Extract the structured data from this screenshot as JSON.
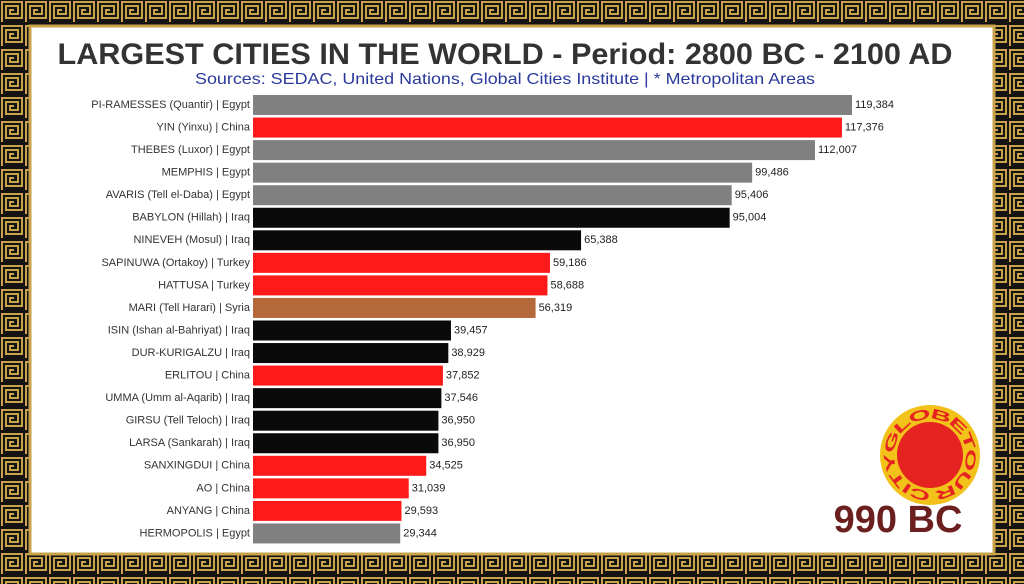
{
  "chart_data": {
    "type": "bar",
    "orientation": "horizontal",
    "title": "LARGEST CITIES IN THE WORLD - Period: 2800 BC - 2100 AD",
    "subtitle": "Sources: SEDAC, United Nations, Global Cities Institute | * Metropolitan Areas",
    "period_label": "990 BC",
    "logo_text": "CITYGLOBETOUR",
    "categories": [
      "PI-RAMESSES (Quantir) | Egypt",
      "YIN (Yinxu) | China",
      "THEBES (Luxor) | Egypt",
      "MEMPHIS | Egypt",
      "AVARIS (Tell el-Daba) | Egypt",
      "BABYLON (Hillah) | Iraq",
      "NINEVEH (Mosul) | Iraq",
      "SAPINUWA (Ortakoy) | Turkey",
      "HATTUSA | Turkey",
      "MARI (Tell Harari) | Syria",
      "ISIN (Ishan al-Bahriyat) | Iraq",
      "DUR-KURIGALZU | Iraq",
      "ERLITOU | China",
      "UMMA (Umm al-Aqarib) | Iraq",
      "GIRSU (Tell Teloch) | Iraq",
      "LARSA (Sankarah) | Iraq",
      "SANXINGDUI | China",
      "AO | China",
      "ANYANG | China",
      "HERMOPOLIS | Egypt"
    ],
    "values": [
      119384,
      117376,
      112007,
      99486,
      95406,
      95004,
      65388,
      59186,
      58688,
      56319,
      39457,
      38929,
      37852,
      37546,
      36950,
      36950,
      34525,
      31039,
      29593,
      29344
    ],
    "value_labels": [
      "119,384",
      "117,376",
      "112,007",
      "99,486",
      "95,406",
      "95,004",
      "65,388",
      "59,186",
      "58,688",
      "56,319",
      "39,457",
      "38,929",
      "37,852",
      "37,546",
      "36,950",
      "36,950",
      "34,525",
      "31,039",
      "29,593",
      "29,344"
    ],
    "colors": [
      "#808080",
      "#ff1a1a",
      "#808080",
      "#808080",
      "#808080",
      "#0a0a0a",
      "#0a0a0a",
      "#ff1a1a",
      "#ff1a1a",
      "#b5693a",
      "#0a0a0a",
      "#0a0a0a",
      "#ff1a1a",
      "#0a0a0a",
      "#0a0a0a",
      "#0a0a0a",
      "#ff1a1a",
      "#ff1a1a",
      "#ff1a1a",
      "#808080"
    ]
  }
}
